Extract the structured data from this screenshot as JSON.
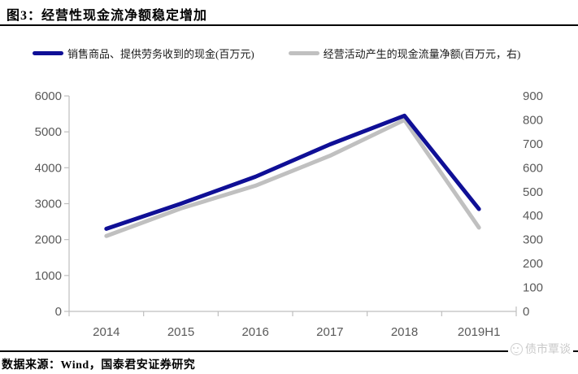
{
  "page": {
    "title": "图3：经营性现金流净额稳定增加"
  },
  "footer": {
    "source": "数据来源：Wind，国泰君安证券研究",
    "watermark": "债市覃谈"
  },
  "chart_data": {
    "type": "line",
    "title": "经营性现金流净额稳定增加",
    "categories": [
      "2014",
      "2015",
      "2016",
      "2017",
      "2018",
      "2019H1"
    ],
    "series": [
      {
        "name": "销售商品、提供劳务收到的现金(百万元)",
        "axis": "left",
        "color": "#0f0f96",
        "values": [
          2300,
          3000,
          3750,
          4650,
          5450,
          2850
        ]
      },
      {
        "name": "经营活动产生的现金流量净额(百万元，右)",
        "axis": "right",
        "color": "#c0c0c0",
        "values": [
          315,
          430,
          525,
          650,
          800,
          350
        ]
      }
    ],
    "left_axis": {
      "min": 0,
      "max": 6000,
      "step": 1000
    },
    "right_axis": {
      "min": 0,
      "max": 900,
      "step": 100
    },
    "grid": false,
    "legend_position": "top",
    "axis_text_color": "#595959",
    "axis_line_color": "#bfbfbf"
  }
}
